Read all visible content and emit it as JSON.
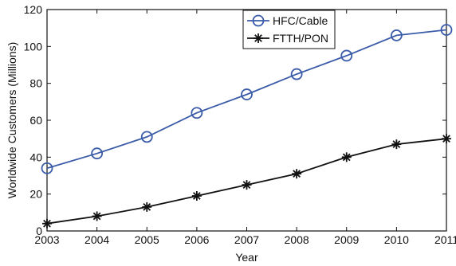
{
  "chart_data": {
    "type": "line",
    "title": "",
    "xlabel": "Year",
    "ylabel": "Worldwide Customers (Millions)",
    "x": [
      2003,
      2004,
      2005,
      2006,
      2007,
      2008,
      2009,
      2010,
      2011
    ],
    "xticks": [
      "2003",
      "2004",
      "2005",
      "2006",
      "2007",
      "2008",
      "2009",
      "2010",
      "2011"
    ],
    "yticks": [
      "0",
      "20",
      "40",
      "60",
      "80",
      "100",
      "120"
    ],
    "xlim": [
      2003,
      2011
    ],
    "ylim": [
      0,
      120
    ],
    "grid": false,
    "legend_position": "top-center",
    "series": [
      {
        "name": "HFC/Cable",
        "values": [
          34,
          42,
          51,
          64,
          74,
          85,
          95,
          106,
          109
        ],
        "color": "#3a5ba8",
        "marker": "circle"
      },
      {
        "name": "FTTH/PON",
        "values": [
          4,
          8,
          13,
          19,
          25,
          31,
          40,
          47,
          50
        ],
        "color": "#111111",
        "marker": "star"
      }
    ]
  }
}
